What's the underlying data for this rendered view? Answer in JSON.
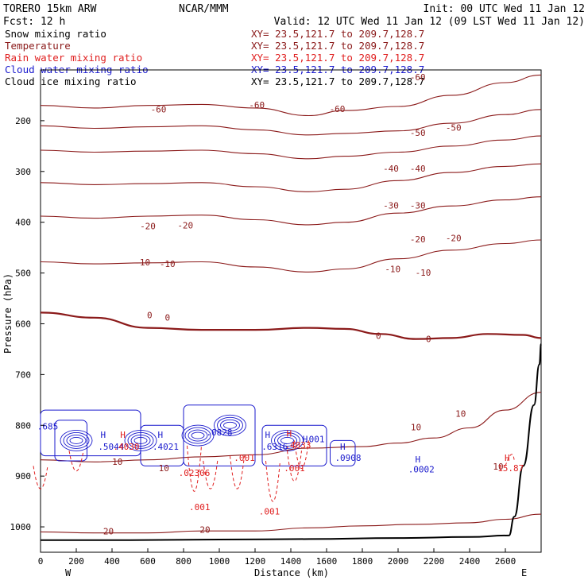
{
  "header": {
    "title_left": "TORERO  15km ARW",
    "title_center": "NCAR/MMM",
    "init": "Init: 00 UTC Wed 11 Jan 12",
    "fcst": "Fcst:   12 h",
    "valid": "Valid: 12 UTC Wed 11 Jan 12 (09 LST Wed 11 Jan 12)"
  },
  "fields": [
    {
      "name": "Snow mixing ratio",
      "xy": "XY=  23.5,121.7 to 209.7,128.7",
      "color": "#000000"
    },
    {
      "name": "Temperature",
      "xy": "XY=  23.5,121.7 to 209.7,128.7",
      "color": "#8b1a1a"
    },
    {
      "name": "Rain water mixing ratio",
      "xy": "XY=  23.5,121.7 to 209.7,128.7",
      "color": "#e02020"
    },
    {
      "name": "Cloud water mixing ratio",
      "xy": "XY=  23.5,121.7 to 209.7,128.7",
      "color": "#1a1acd"
    },
    {
      "name": "Cloud ice mixing ratio",
      "xy": "XY=  23.5,121.7 to 209.7,128.7",
      "color": "#000000"
    }
  ],
  "colors": {
    "temperature": "#8b1a1a",
    "rain": "#e02020",
    "cloud_water": "#1a1acd",
    "terrain": "#000000"
  },
  "chart_data": {
    "type": "line",
    "xlabel": "Distance (km)",
    "ylabel": "Pressure (hPa)",
    "xlim": [
      0,
      2800
    ],
    "ylim": [
      1050,
      100
    ],
    "x_ticks": [
      "0",
      "200",
      "400",
      "600",
      "800",
      "1000",
      "1200",
      "1400",
      "1600",
      "1800",
      "2000",
      "2200",
      "2400",
      "2600"
    ],
    "y_ticks": [
      "200",
      "300",
      "400",
      "500",
      "600",
      "700",
      "800",
      "900",
      "1000"
    ],
    "x_tick_values": [
      0,
      200,
      400,
      600,
      800,
      1000,
      1200,
      1400,
      1600,
      1800,
      2000,
      2200,
      2400,
      2600
    ],
    "y_tick_values": [
      200,
      300,
      400,
      500,
      600,
      700,
      800,
      900,
      1000
    ],
    "endpoints": {
      "left": "W",
      "right": "E"
    },
    "temperature_isotherms": [
      {
        "value": "-60",
        "x": [
          0,
          300,
          600,
          900,
          1200,
          1500,
          1700,
          2000,
          2300,
          2600,
          2800
        ],
        "p": [
          170,
          175,
          170,
          168,
          175,
          190,
          180,
          172,
          150,
          125,
          110
        ]
      },
      {
        "value": "-50",
        "x": [
          0,
          300,
          600,
          900,
          1200,
          1500,
          1700,
          2000,
          2300,
          2600,
          2800
        ],
        "p": [
          210,
          215,
          212,
          210,
          218,
          228,
          225,
          220,
          205,
          188,
          178
        ]
      },
      {
        "value": "-40",
        "x": [
          0,
          300,
          600,
          900,
          1200,
          1500,
          1700,
          2000,
          2300,
          2600,
          2800
        ],
        "p": [
          258,
          262,
          260,
          258,
          265,
          275,
          270,
          262,
          250,
          238,
          230
        ]
      },
      {
        "value": "-30",
        "x": [
          0,
          300,
          600,
          900,
          1200,
          1500,
          1700,
          2000,
          2300,
          2600,
          2800
        ],
        "p": [
          322,
          326,
          324,
          322,
          330,
          340,
          335,
          318,
          302,
          290,
          285
        ]
      },
      {
        "value": "-20",
        "x": [
          0,
          300,
          600,
          900,
          1200,
          1500,
          1700,
          2000,
          2300,
          2600,
          2800
        ],
        "p": [
          388,
          392,
          388,
          386,
          395,
          405,
          400,
          382,
          368,
          356,
          350
        ]
      },
      {
        "value": "-10",
        "x": [
          0,
          300,
          600,
          900,
          1200,
          1500,
          1700,
          2000,
          2300,
          2600,
          2800
        ],
        "p": [
          478,
          482,
          480,
          478,
          488,
          498,
          492,
          472,
          455,
          442,
          435
        ]
      },
      {
        "value": "0",
        "x": [
          0,
          300,
          600,
          900,
          1200,
          1500,
          1700,
          1900,
          2100,
          2300,
          2500,
          2700,
          2800
        ],
        "p": [
          578,
          588,
          608,
          612,
          612,
          608,
          610,
          620,
          630,
          628,
          620,
          622,
          628
        ]
      },
      {
        "value": "10",
        "x": [
          0,
          300,
          600,
          900,
          1200,
          1500,
          1800,
          2000,
          2200,
          2400,
          2600,
          2800
        ],
        "p": [
          868,
          872,
          868,
          862,
          858,
          845,
          842,
          835,
          825,
          805,
          770,
          735
        ]
      },
      {
        "value": "20",
        "x": [
          0,
          300,
          600,
          900,
          1200,
          1500,
          1800,
          2100,
          2400,
          2600,
          2800
        ],
        "p": [
          1010,
          1012,
          1012,
          1008,
          1008,
          1002,
          998,
          995,
          992,
          985,
          975
        ]
      }
    ],
    "isotherm_labels": [
      {
        "text": "-60",
        "x": 660,
        "p": 184
      },
      {
        "text": "-60",
        "x": 1210,
        "p": 175
      },
      {
        "text": "-60",
        "x": 1660,
        "p": 183
      },
      {
        "text": "-60",
        "x": 2110,
        "p": 120
      },
      {
        "text": "-50",
        "x": 2110,
        "p": 230
      },
      {
        "text": "-50",
        "x": 2310,
        "p": 220
      },
      {
        "text": "-40",
        "x": 1960,
        "p": 300
      },
      {
        "text": "-40",
        "x": 2110,
        "p": 300
      },
      {
        "text": "-30",
        "x": 1960,
        "p": 373
      },
      {
        "text": "-30",
        "x": 2110,
        "p": 373
      },
      {
        "text": "-20",
        "x": 600,
        "p": 414
      },
      {
        "text": "-20",
        "x": 810,
        "p": 412
      },
      {
        "text": "-20",
        "x": 2110,
        "p": 440
      },
      {
        "text": "-20",
        "x": 2310,
        "p": 437
      },
      {
        "text": "-10",
        "x": 570,
        "p": 485
      },
      {
        "text": "-10",
        "x": 710,
        "p": 488
      },
      {
        "text": "-10",
        "x": 1970,
        "p": 498
      },
      {
        "text": "-10",
        "x": 2140,
        "p": 505
      },
      {
        "text": "0",
        "x": 610,
        "p": 589
      },
      {
        "text": "0",
        "x": 710,
        "p": 594
      },
      {
        "text": "0",
        "x": 1890,
        "p": 630
      },
      {
        "text": "0",
        "x": 2170,
        "p": 636
      },
      {
        "text": "10",
        "x": 2350,
        "p": 783
      },
      {
        "text": "10",
        "x": 2100,
        "p": 810
      },
      {
        "text": "10",
        "x": 430,
        "p": 878
      },
      {
        "text": "10",
        "x": 690,
        "p": 890
      },
      {
        "text": "10",
        "x": 2560,
        "p": 887
      },
      {
        "text": "20",
        "x": 380,
        "p": 1015
      },
      {
        "text": "20",
        "x": 920,
        "p": 1012
      }
    ],
    "cloud_water_labels": [
      {
        "text": "H",
        "x": 350,
        "p": 825
      },
      {
        "text": ".5044",
        "x": 395,
        "p": 848
      },
      {
        "text": "H",
        "x": 670,
        "p": 825
      },
      {
        "text": ".4021",
        "x": 700,
        "p": 848
      },
      {
        "text": ".0828",
        "x": 1000,
        "p": 820
      },
      {
        "text": ".6316",
        "x": 1310,
        "p": 848
      },
      {
        "text": "H",
        "x": 1690,
        "p": 848
      },
      {
        "text": ".0908",
        "x": 1720,
        "p": 870
      },
      {
        "text": "H",
        "x": 2110,
        "p": 873
      },
      {
        "text": ".0002",
        "x": 2130,
        "p": 893
      },
      {
        "text": ".685",
        "x": 40,
        "p": 808
      },
      {
        "text": "H",
        "x": 1270,
        "p": 825
      },
      {
        "text": "H",
        "x": 1480,
        "p": 833
      },
      {
        "text": ".001",
        "x": 1530,
        "p": 833
      }
    ],
    "rain_labels": [
      {
        "text": "H",
        "x": 460,
        "p": 825
      },
      {
        "text": ".4030",
        "x": 480,
        "p": 848
      },
      {
        "text": ".02306",
        "x": 860,
        "p": 900
      },
      {
        "text": ".001",
        "x": 890,
        "p": 967
      },
      {
        "text": ".001",
        "x": 1140,
        "p": 870
      },
      {
        "text": ".001",
        "x": 1280,
        "p": 976
      },
      {
        "text": ".001",
        "x": 1420,
        "p": 890
      },
      {
        "text": "H",
        "x": 1390,
        "p": 822
      },
      {
        "text": ".4033",
        "x": 1440,
        "p": 845
      },
      {
        "text": "H",
        "x": 2610,
        "p": 870
      },
      {
        "text": "15.87",
        "x": 2630,
        "p": 890
      }
    ],
    "terrain": {
      "x": [
        0,
        500,
        1000,
        1500,
        2000,
        2400,
        2620,
        2650,
        2700,
        2760,
        2790,
        2800
      ],
      "p": [
        1026,
        1026,
        1025,
        1024,
        1022,
        1020,
        1017,
        980,
        880,
        760,
        680,
        640
      ]
    }
  }
}
